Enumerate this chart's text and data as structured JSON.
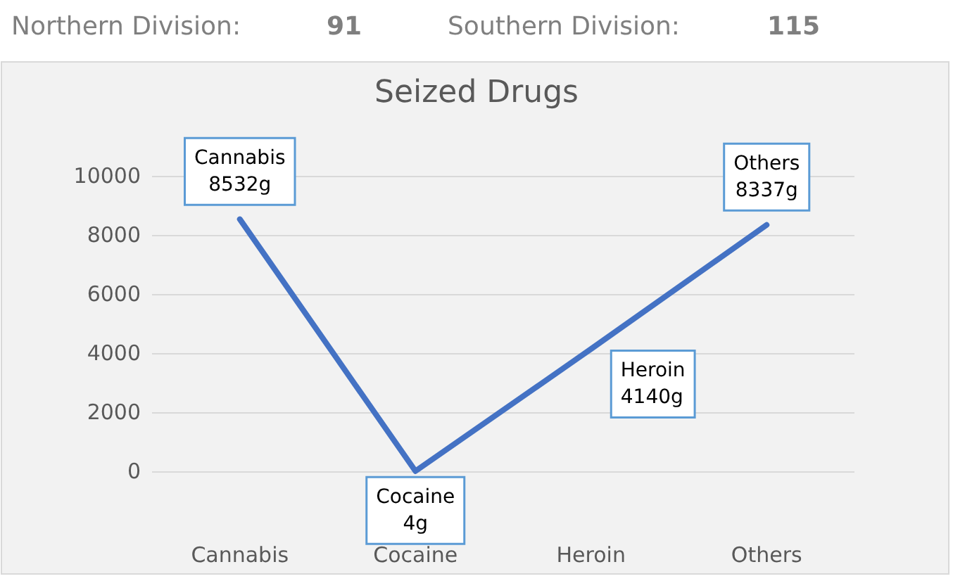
{
  "chart_data": {
    "type": "line",
    "title": "Seized Drugs",
    "categories": [
      "Cannabis",
      "Cocaine",
      "Heroin",
      "Others"
    ],
    "series": [
      {
        "color": "#4472c4",
        "values": [
          8532,
          4,
          4140,
          8337
        ],
        "value_labels": [
          "Cannabis\n8532g",
          "Cocaine\n4g",
          "Heroin\n4140g",
          "Others\n8337g"
        ]
      }
    ],
    "ylim": [
      0,
      10000
    ],
    "yticks": [
      0,
      2000,
      4000,
      6000,
      8000,
      10000
    ],
    "grid": "y",
    "marker": "none",
    "line_style": "solid",
    "annotations": [
      "Northern Division:",
      "91",
      "Southern Division:",
      "115"
    ]
  }
}
